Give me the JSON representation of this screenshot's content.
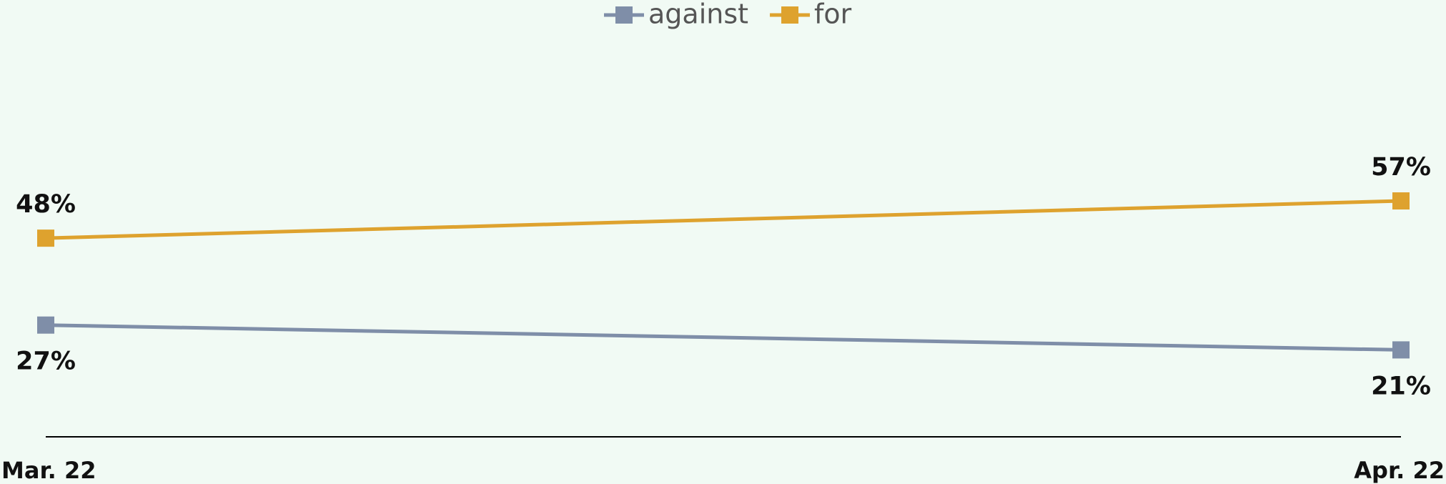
{
  "chart_data": {
    "type": "line",
    "categories": [
      "Mar. 22",
      "Apr. 22"
    ],
    "series": [
      {
        "name": "against",
        "color": "#7f8ea8",
        "values": [
          27,
          21
        ],
        "value_labels": [
          "27%",
          "21%"
        ]
      },
      {
        "name": "for",
        "color": "#dea22e",
        "values": [
          48,
          57
        ],
        "value_labels": [
          "48%",
          "57%"
        ]
      }
    ],
    "ylim": [
      0,
      90
    ],
    "legend": "top"
  }
}
